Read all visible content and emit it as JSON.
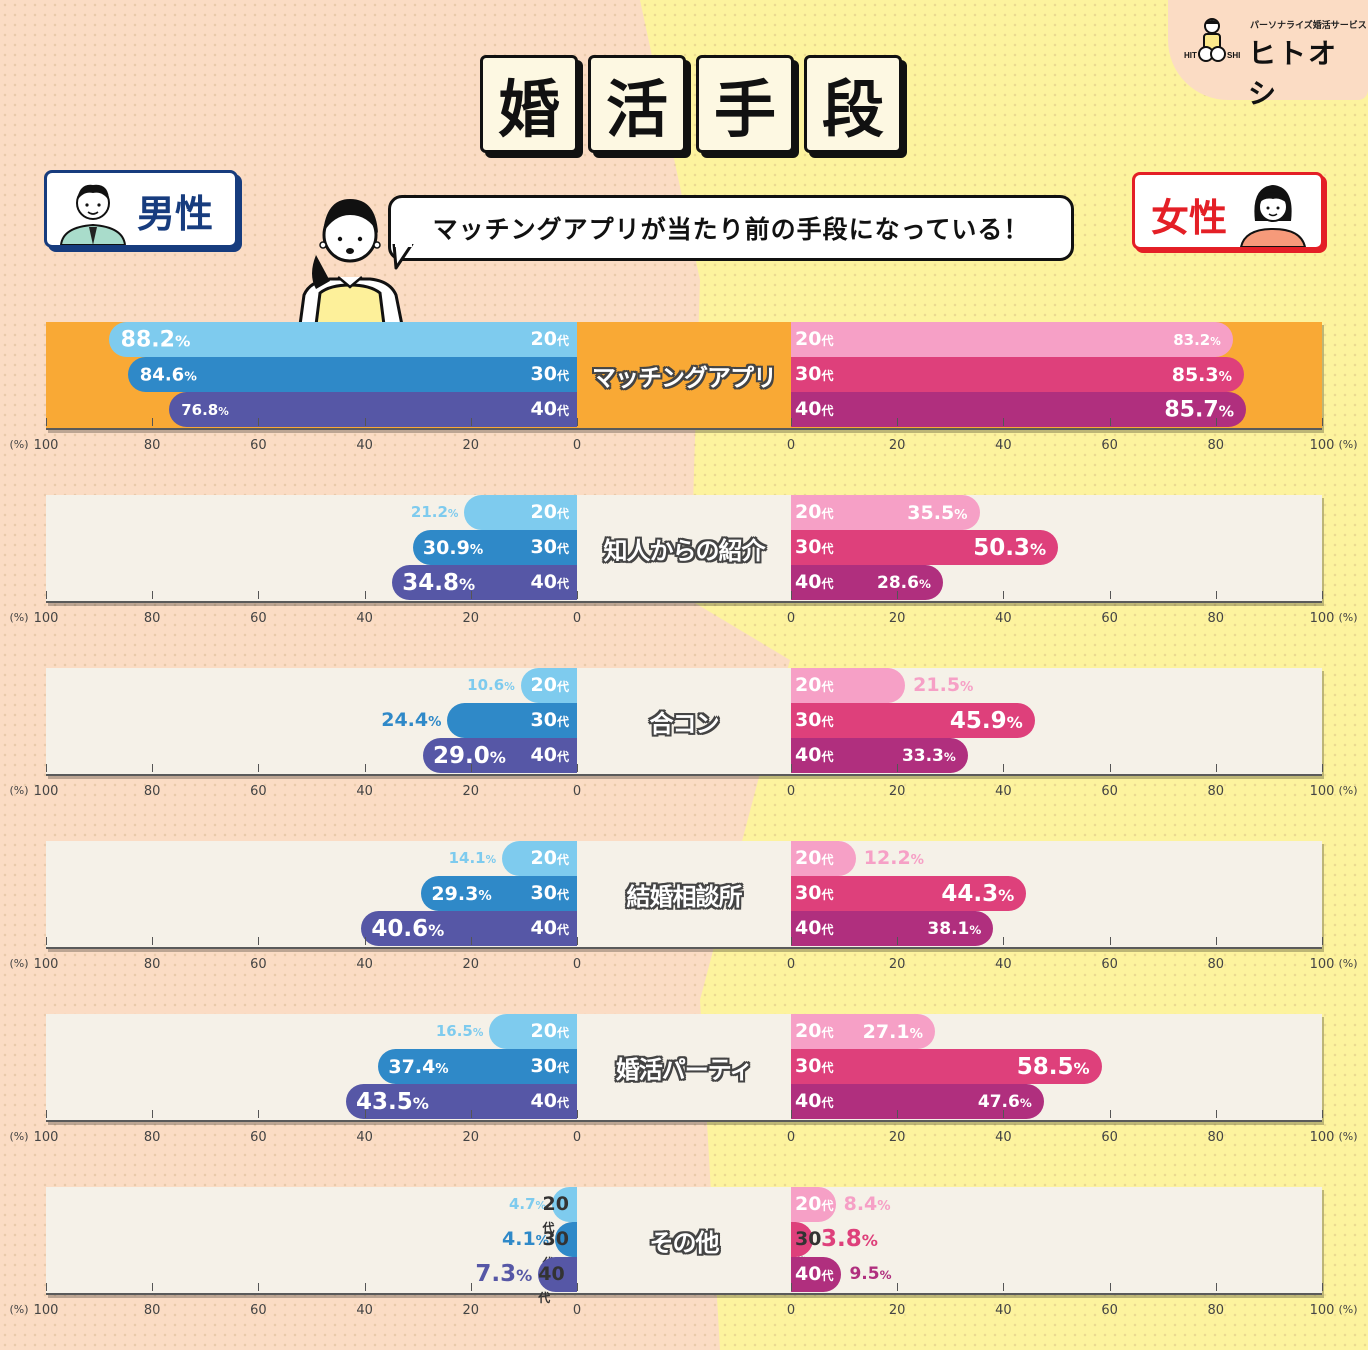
{
  "title": [
    "婚",
    "活",
    "手",
    "段"
  ],
  "logo": {
    "tagline": "パーソナライズ婚活サービス",
    "name": "ヒトオシ",
    "mark_text": "HITOSHI"
  },
  "badges": {
    "male": "男性",
    "female": "女性"
  },
  "speech": "マッチングアプリが当たり前の手段になっている！",
  "age_suffix": "代",
  "axis": {
    "unit": "(%)",
    "left_ticks": [
      "100",
      "80",
      "60",
      "40",
      "20",
      "0"
    ],
    "right_ticks": [
      "0",
      "20",
      "40",
      "60",
      "80",
      "100"
    ]
  },
  "colors": {
    "male": [
      "#7ecbee",
      "#2f89c8",
      "#5657a6"
    ],
    "female": [
      "#f6a0c6",
      "#de407b",
      "#b02f7e"
    ],
    "highlight_bg": "#f9a935",
    "panel_bg": "#f5f1e8"
  },
  "chart_data": {
    "type": "bar",
    "title": "婚活手段",
    "subtitle": "マッチングアプリが当たり前の手段になっている！",
    "xlabel": "(%)",
    "xlim": [
      0,
      100
    ],
    "orientation": "horizontal-butterfly",
    "groups": [
      "男性",
      "女性"
    ],
    "age_groups": [
      "20代",
      "30代",
      "40代"
    ],
    "categories": [
      "マッチングアプリ",
      "知人からの紹介",
      "合コン",
      "結婚相談所",
      "婚活パーティ",
      "その他"
    ],
    "series": [
      {
        "name": "男性 20代",
        "values": [
          88.2,
          21.2,
          10.6,
          14.1,
          16.5,
          4.7
        ]
      },
      {
        "name": "男性 30代",
        "values": [
          84.6,
          30.9,
          24.4,
          29.3,
          37.4,
          4.1
        ]
      },
      {
        "name": "男性 40代",
        "values": [
          76.8,
          34.8,
          29.0,
          40.6,
          43.5,
          7.3
        ]
      },
      {
        "name": "女性 20代",
        "values": [
          83.2,
          35.5,
          21.5,
          12.2,
          27.1,
          8.4
        ]
      },
      {
        "name": "女性 30代",
        "values": [
          85.3,
          50.3,
          45.9,
          44.3,
          58.5,
          3.8
        ]
      },
      {
        "name": "女性 40代",
        "values": [
          85.7,
          28.6,
          33.3,
          38.1,
          47.6,
          9.5
        ]
      }
    ]
  },
  "sections": [
    {
      "label": "マッチングアプリ",
      "highlight": true,
      "male": [
        {
          "age": "20",
          "value": "88.2"
        },
        {
          "age": "30",
          "value": "84.6"
        },
        {
          "age": "40",
          "value": "76.8"
        }
      ],
      "female": [
        {
          "age": "20",
          "value": "83.2"
        },
        {
          "age": "30",
          "value": "85.3"
        },
        {
          "age": "40",
          "value": "85.7"
        }
      ]
    },
    {
      "label": "知人からの紹介",
      "highlight": false,
      "male": [
        {
          "age": "20",
          "value": "21.2"
        },
        {
          "age": "30",
          "value": "30.9"
        },
        {
          "age": "40",
          "value": "34.8"
        }
      ],
      "female": [
        {
          "age": "20",
          "value": "35.5"
        },
        {
          "age": "30",
          "value": "50.3"
        },
        {
          "age": "40",
          "value": "28.6"
        }
      ]
    },
    {
      "label": "合コン",
      "highlight": false,
      "male": [
        {
          "age": "20",
          "value": "10.6"
        },
        {
          "age": "30",
          "value": "24.4"
        },
        {
          "age": "40",
          "value": "29.0"
        }
      ],
      "female": [
        {
          "age": "20",
          "value": "21.5"
        },
        {
          "age": "30",
          "value": "45.9"
        },
        {
          "age": "40",
          "value": "33.3"
        }
      ]
    },
    {
      "label": "結婚相談所",
      "highlight": false,
      "male": [
        {
          "age": "20",
          "value": "14.1"
        },
        {
          "age": "30",
          "value": "29.3"
        },
        {
          "age": "40",
          "value": "40.6"
        }
      ],
      "female": [
        {
          "age": "20",
          "value": "12.2"
        },
        {
          "age": "30",
          "value": "44.3"
        },
        {
          "age": "40",
          "value": "38.1"
        }
      ]
    },
    {
      "label": "婚活パーティ",
      "highlight": false,
      "male": [
        {
          "age": "20",
          "value": "16.5"
        },
        {
          "age": "30",
          "value": "37.4"
        },
        {
          "age": "40",
          "value": "43.5"
        }
      ],
      "female": [
        {
          "age": "20",
          "value": "27.1"
        },
        {
          "age": "30",
          "value": "58.5"
        },
        {
          "age": "40",
          "value": "47.6"
        }
      ]
    },
    {
      "label": "その他",
      "highlight": false,
      "male": [
        {
          "age": "20",
          "value": "4.7"
        },
        {
          "age": "30",
          "value": "4.1"
        },
        {
          "age": "40",
          "value": "7.3"
        }
      ],
      "female": [
        {
          "age": "20",
          "value": "8.4"
        },
        {
          "age": "30",
          "value": "3.8"
        },
        {
          "age": "40",
          "value": "9.5"
        }
      ]
    }
  ]
}
